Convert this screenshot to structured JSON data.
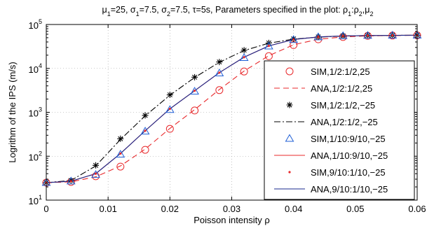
{
  "chart_data": {
    "type": "line",
    "title_parts": [
      {
        "t": "μ"
      },
      {
        "t": "1",
        "sub": true
      },
      {
        "t": "=25, σ"
      },
      {
        "t": "1",
        "sub": true
      },
      {
        "t": "=7.5, σ"
      },
      {
        "t": "2",
        "sub": true
      },
      {
        "t": "=7.5, τ=5s, Parameters specified in the plot: ρ"
      },
      {
        "t": "1",
        "sub": true
      },
      {
        "t": ":ρ"
      },
      {
        "t": "2",
        "sub": true
      },
      {
        "t": ",μ"
      },
      {
        "t": "2",
        "sub": true
      }
    ],
    "xlabel": "Poisson intensity ρ",
    "ylabel": "Logrithm of the IPS (m/s)",
    "xlim": [
      0,
      0.06
    ],
    "ylim": [
      10,
      100000
    ],
    "yscale": "log",
    "xticks": [
      "0",
      "0.01",
      "0.02",
      "0.03",
      "0.04",
      "0.05",
      "0.06"
    ],
    "yticks": [
      {
        "base": "10",
        "exp": "1"
      },
      {
        "base": "10",
        "exp": "2"
      },
      {
        "base": "10",
        "exp": "3"
      },
      {
        "base": "10",
        "exp": "4"
      },
      {
        "base": "10",
        "exp": "5"
      }
    ],
    "legend_position": "right",
    "grid": "dotted",
    "x": [
      0,
      0.004,
      0.008,
      0.012,
      0.016,
      0.02,
      0.024,
      0.028,
      0.032,
      0.036,
      0.04,
      0.044,
      0.048,
      0.052,
      0.056,
      0.06
    ],
    "series": [
      {
        "name": "SIM,1/2:1/2,25",
        "style": "marker",
        "marker": "circle",
        "color": "#e8282b",
        "values": [
          25,
          26,
          35,
          58,
          140,
          420,
          1100,
          3200,
          8500,
          19000,
          34000,
          46000,
          52000,
          55000,
          56000,
          56500
        ]
      },
      {
        "name": "ANA,1/2:1/2,25",
        "style": "line",
        "dash": "8,5",
        "color": "#e8282b",
        "values": [
          25,
          26,
          34,
          60,
          145,
          430,
          1150,
          3300,
          8700,
          19500,
          34500,
          46000,
          52000,
          55000,
          56000,
          56500
        ]
      },
      {
        "name": "SIM,1/2:1/2,−25",
        "style": "marker",
        "marker": "star",
        "color": "#000000",
        "values": [
          25,
          28,
          62,
          250,
          850,
          2500,
          6300,
          14000,
          26000,
          38000,
          47000,
          52000,
          55000,
          56000,
          56500,
          57000
        ]
      },
      {
        "name": "ANA,1/2:1/2,−25",
        "style": "line",
        "dash": "9,3,2,3",
        "color": "#000000",
        "values": [
          25,
          28,
          60,
          240,
          830,
          2450,
          6200,
          13800,
          25500,
          37500,
          46500,
          51500,
          54500,
          56000,
          56500,
          57000
        ]
      },
      {
        "name": "SIM,1/10:9/10,−25",
        "style": "marker",
        "marker": "triangle",
        "color": "#1f5fd6",
        "values": [
          25,
          27,
          38,
          110,
          370,
          1150,
          3000,
          7800,
          17500,
          32000,
          45000,
          52000,
          55000,
          56000,
          56500,
          57000
        ]
      },
      {
        "name": "ANA,1/10:9/10,−25",
        "style": "line",
        "dash": "",
        "color": "#e8282b",
        "values": [
          25,
          27,
          40,
          115,
          380,
          1200,
          3100,
          8000,
          18000,
          32500,
          45500,
          52000,
          55000,
          56000,
          56500,
          57000
        ]
      },
      {
        "name": "SIM,9/10:1/10,−25",
        "style": "marker",
        "marker": "dot",
        "color": "#e8282b",
        "values": [
          25,
          27,
          40,
          115,
          380,
          1200,
          3100,
          8000,
          18000,
          32500,
          45500,
          52000,
          55000,
          56000,
          56500,
          57000
        ]
      },
      {
        "name": "ANA,9/10:1/10,−25",
        "style": "line",
        "dash": "",
        "color": "#1a2a8c",
        "values": [
          25,
          27,
          40,
          115,
          380,
          1200,
          3100,
          8000,
          18000,
          32500,
          45500,
          52000,
          55000,
          56000,
          56500,
          57000
        ]
      }
    ]
  }
}
